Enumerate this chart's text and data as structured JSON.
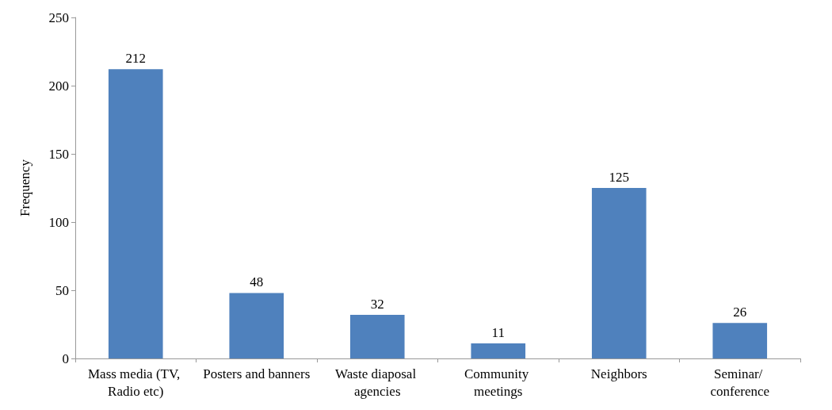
{
  "chart_data": {
    "type": "bar",
    "ylabel": "Frequency",
    "categories": [
      "Mass media (TV, Radio etc)",
      "Posters and banners",
      "Waste diaposal agencies",
      "Community meetings",
      "Neighbors",
      "Seminar/ conference"
    ],
    "values": [
      212,
      48,
      32,
      11,
      125,
      26
    ],
    "color": "#4f81bd",
    "ylim": [
      0,
      250
    ],
    "yticks": [
      0,
      50,
      100,
      150,
      200,
      250
    ],
    "grid": false,
    "data_labels": true
  }
}
